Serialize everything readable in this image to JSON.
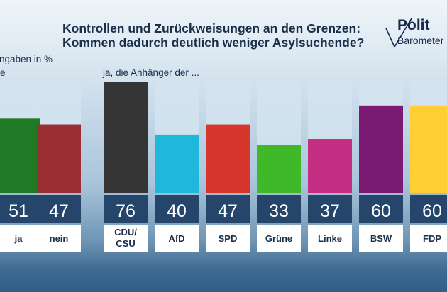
{
  "header": {
    "title_line1": "Kontrollen und Zurückweisungen an den Grenzen:",
    "title_line2": "Kommen dadurch deutlich weniger Asylsuchende?"
  },
  "logo": {
    "line1": "Polit",
    "line2": "Barometer"
  },
  "notes": {
    "unit": "Angaben in %",
    "truncated": "e",
    "subtitle": "ja, die Anhänger der ..."
  },
  "chart_data": {
    "type": "bar",
    "groups": [
      {
        "name": "",
        "categories": [
          "ja",
          "nein"
        ],
        "values": [
          51,
          47
        ],
        "colors": [
          "#1f7a26",
          "#9a2e32"
        ]
      },
      {
        "name": "ja, die Anhänger der ...",
        "categories": [
          "CDU/CSU",
          "AfD",
          "SPD",
          "Grüne",
          "Linke",
          "BSW",
          "FDP"
        ],
        "values": [
          76,
          40,
          47,
          33,
          37,
          60,
          60
        ],
        "colors": [
          "#353535",
          "#1fb7db",
          "#d7362c",
          "#3fb92a",
          "#c42e83",
          "#7b1a73",
          "#ffcf33"
        ]
      }
    ],
    "ylim": [
      0,
      100
    ]
  }
}
